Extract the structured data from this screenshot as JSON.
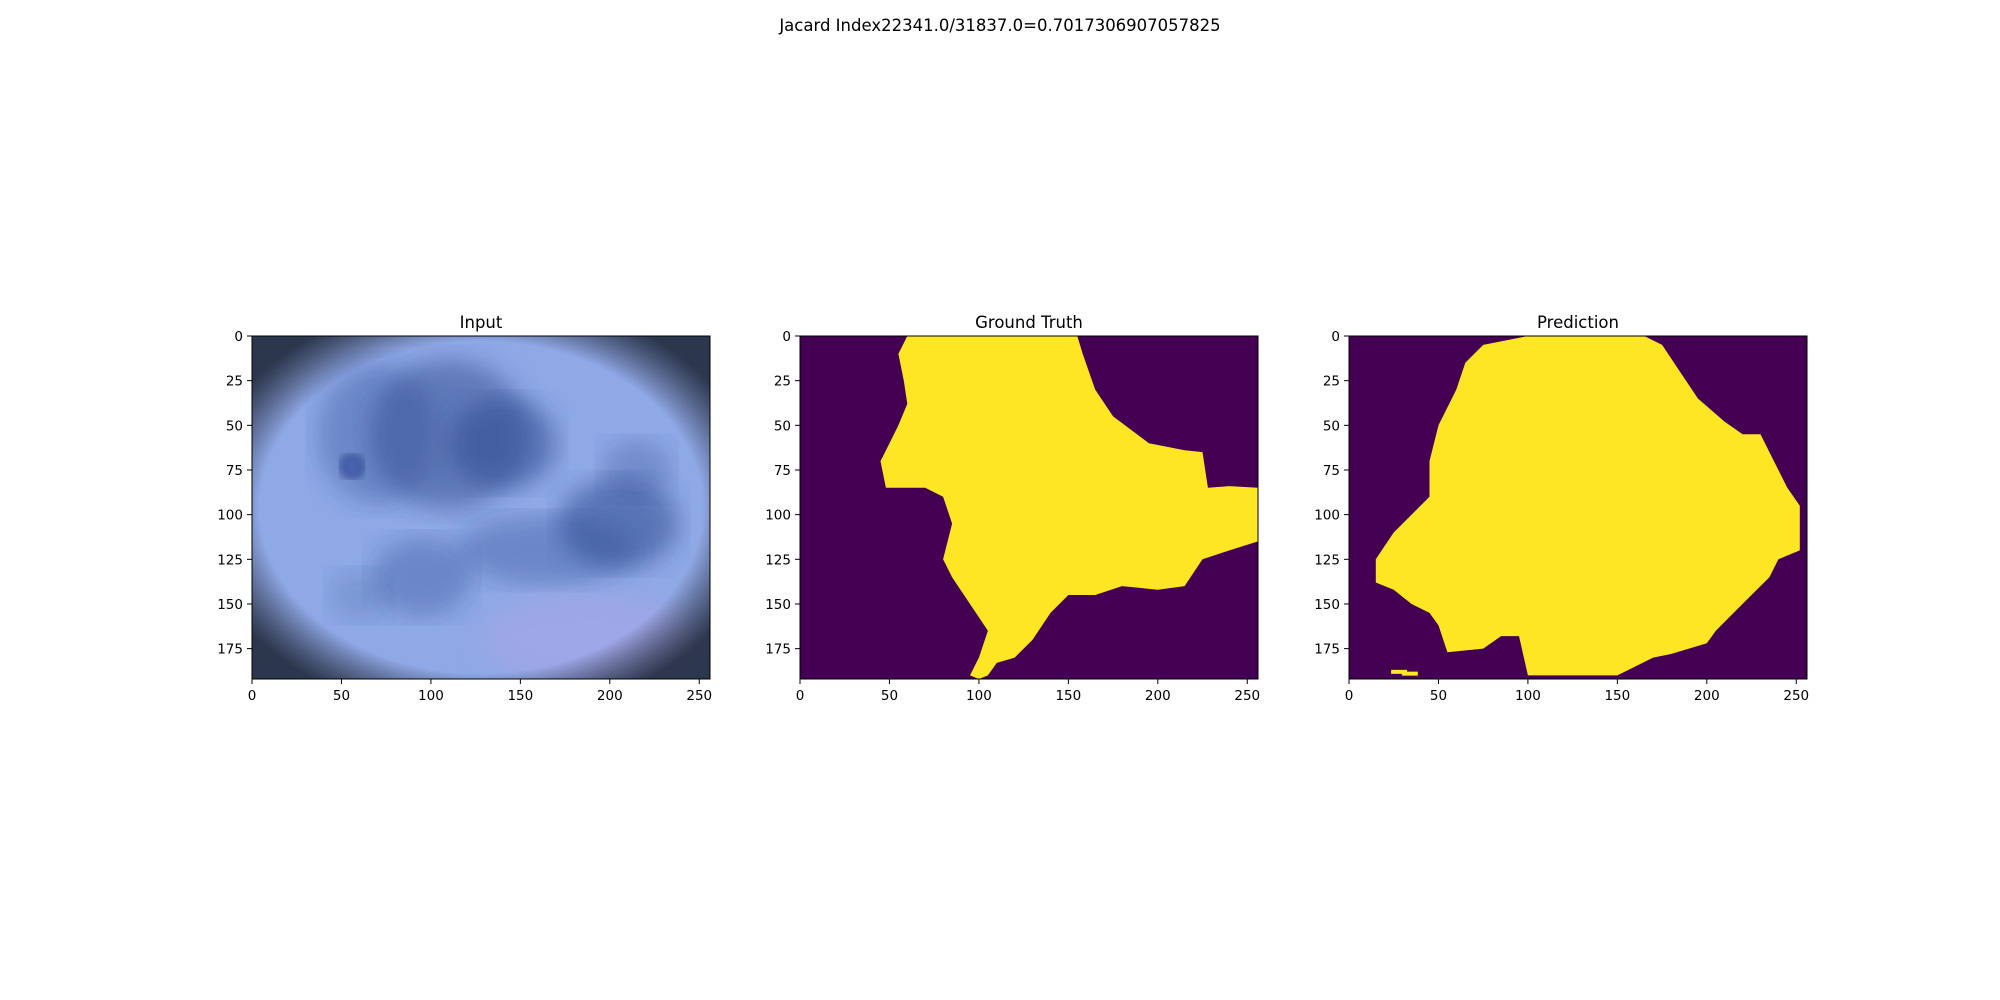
{
  "suptitle": "Jacard Index22341.0/31837.0=0.7017306907057825",
  "colors": {
    "background": "#440154",
    "foreground": "#fde725",
    "skin_light": "#8fa8e6",
    "skin_dark": "#2f4a8e",
    "vignette": "#2a3548"
  },
  "chart_data": [
    {
      "type": "heatmap",
      "title": "Input",
      "content": "dermoscopy-image",
      "xlim": [
        0,
        256
      ],
      "ylim": [
        192,
        0
      ],
      "xticks": [
        0,
        50,
        100,
        150,
        200,
        250
      ],
      "yticks": [
        0,
        25,
        50,
        75,
        100,
        125,
        150,
        175
      ]
    },
    {
      "type": "heatmap",
      "title": "Ground Truth",
      "content": "binary-mask",
      "xlim": [
        0,
        256
      ],
      "ylim": [
        192,
        0
      ],
      "xticks": [
        0,
        50,
        100,
        150,
        200,
        250
      ],
      "yticks": [
        0,
        25,
        50,
        75,
        100,
        125,
        150,
        175
      ],
      "region": [
        [
          60,
          0
        ],
        [
          155,
          0
        ],
        [
          158,
          10
        ],
        [
          165,
          30
        ],
        [
          175,
          45
        ],
        [
          195,
          60
        ],
        [
          215,
          64
        ],
        [
          225,
          65
        ],
        [
          228,
          85
        ],
        [
          240,
          84
        ],
        [
          256,
          85
        ],
        [
          256,
          115
        ],
        [
          240,
          120
        ],
        [
          225,
          125
        ],
        [
          215,
          140
        ],
        [
          200,
          142
        ],
        [
          180,
          140
        ],
        [
          165,
          145
        ],
        [
          150,
          145
        ],
        [
          140,
          155
        ],
        [
          130,
          170
        ],
        [
          120,
          180
        ],
        [
          110,
          183
        ],
        [
          105,
          190
        ],
        [
          100,
          192
        ],
        [
          95,
          190
        ],
        [
          100,
          180
        ],
        [
          105,
          165
        ],
        [
          95,
          150
        ],
        [
          85,
          135
        ],
        [
          80,
          125
        ],
        [
          85,
          105
        ],
        [
          80,
          90
        ],
        [
          70,
          85
        ],
        [
          48,
          85
        ],
        [
          45,
          70
        ],
        [
          50,
          60
        ],
        [
          55,
          50
        ],
        [
          60,
          38
        ],
        [
          58,
          25
        ],
        [
          55,
          10
        ]
      ]
    },
    {
      "type": "heatmap",
      "title": "Prediction",
      "content": "binary-mask",
      "xlim": [
        0,
        256
      ],
      "ylim": [
        192,
        0
      ],
      "xticks": [
        0,
        50,
        100,
        150,
        200,
        250
      ],
      "yticks": [
        0,
        25,
        50,
        75,
        100,
        125,
        150,
        175
      ],
      "region": [
        [
          75,
          5
        ],
        [
          100,
          0
        ],
        [
          165,
          0
        ],
        [
          175,
          5
        ],
        [
          185,
          20
        ],
        [
          195,
          35
        ],
        [
          210,
          48
        ],
        [
          220,
          55
        ],
        [
          230,
          55
        ],
        [
          235,
          65
        ],
        [
          240,
          75
        ],
        [
          245,
          85
        ],
        [
          252,
          95
        ],
        [
          252,
          120
        ],
        [
          240,
          125
        ],
        [
          235,
          135
        ],
        [
          225,
          145
        ],
        [
          215,
          155
        ],
        [
          205,
          165
        ],
        [
          200,
          172
        ],
        [
          190,
          175
        ],
        [
          180,
          178
        ],
        [
          170,
          180
        ],
        [
          160,
          185
        ],
        [
          150,
          190
        ],
        [
          100,
          190
        ],
        [
          95,
          168
        ],
        [
          85,
          168
        ],
        [
          75,
          175
        ],
        [
          55,
          177
        ],
        [
          50,
          162
        ],
        [
          45,
          155
        ],
        [
          35,
          150
        ],
        [
          25,
          142
        ],
        [
          15,
          138
        ],
        [
          15,
          125
        ],
        [
          25,
          110
        ],
        [
          35,
          100
        ],
        [
          45,
          90
        ],
        [
          45,
          70
        ],
        [
          50,
          50
        ],
        [
          60,
          30
        ],
        [
          65,
          15
        ]
      ],
      "specks": [
        [
          28,
          188
        ],
        [
          34,
          189
        ]
      ]
    }
  ]
}
